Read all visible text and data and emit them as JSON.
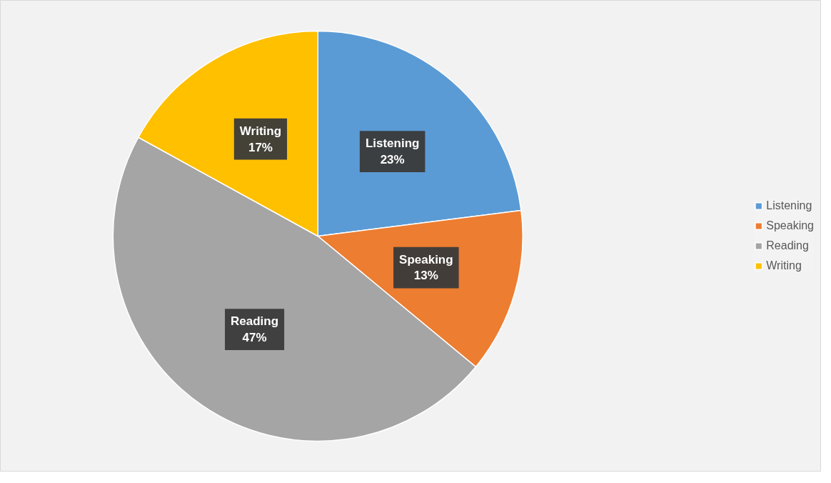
{
  "chart_data": {
    "type": "pie",
    "categories": [
      "Listening",
      "Speaking",
      "Reading",
      "Writing"
    ],
    "values": [
      23,
      13,
      47,
      17
    ],
    "value_labels": [
      "23%",
      "13%",
      "47%",
      "17%"
    ],
    "colors": [
      "#5b9bd5",
      "#ed7d31",
      "#a5a5a5",
      "#ffc000"
    ],
    "legend": "right"
  }
}
